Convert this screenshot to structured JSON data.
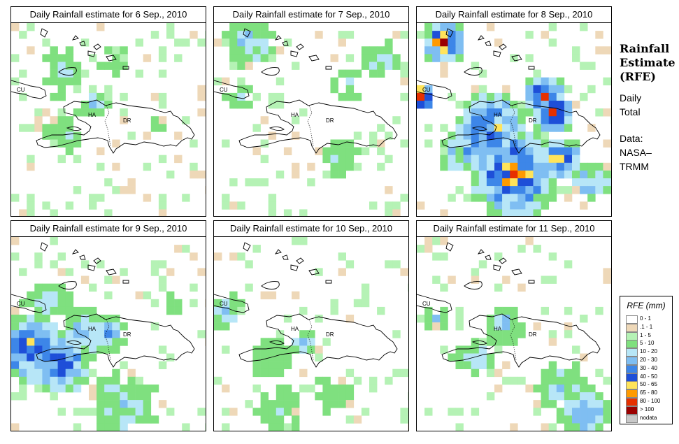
{
  "panels": [
    {
      "title": "Daily Rainfall estimate for  6 Sep., 2010",
      "day": 6
    },
    {
      "title": "Daily Rainfall estimate for  7 Sep., 2010",
      "day": 7
    },
    {
      "title": "Daily Rainfall estimate for  8 Sep., 2010",
      "day": 8
    },
    {
      "title": "Daily Rainfall estimate for  9 Sep., 2010",
      "day": 9
    },
    {
      "title": "Daily Rainfall estimate for  10 Sep., 2010",
      "day": 10
    },
    {
      "title": "Daily Rainfall estimate for  11 Sep., 2010",
      "day": 11
    }
  ],
  "map_labels": {
    "cuba": "CU",
    "haiti": "HA",
    "dr": "DR"
  },
  "sidebar": {
    "title_line1": "Rainfall",
    "title_line2": "Estimate",
    "title_line3": "(RFE)",
    "period_line1": "Daily",
    "period_line2": "Total",
    "source_line1": "Data:",
    "source_line2": "NASA–",
    "source_line3": "TRMM"
  },
  "legend": {
    "title": "RFE (mm)",
    "items": [
      {
        "label": "0 - 1",
        "color": "#ffffff"
      },
      {
        "label": ".1 - 1",
        "color": "#eed8b8"
      },
      {
        "label": "1 - 5",
        "color": "#b5f2b5"
      },
      {
        "label": "5 - 10",
        "color": "#7fe07f"
      },
      {
        "label": "10 - 20",
        "color": "#b7e6f7"
      },
      {
        "label": "20 - 30",
        "color": "#7fbef2"
      },
      {
        "label": "30 - 40",
        "color": "#3d86e8"
      },
      {
        "label": "40 - 50",
        "color": "#1e4fd8"
      },
      {
        "label": "50 - 65",
        "color": "#ffe45a"
      },
      {
        "label": "65 - 80",
        "color": "#ff9a00"
      },
      {
        "label": "80 - 100",
        "color": "#e63000"
      },
      {
        "label": "> 100",
        "color": "#9b0000"
      },
      {
        "label": "nodata",
        "color": "#c8c8c8"
      }
    ]
  }
}
